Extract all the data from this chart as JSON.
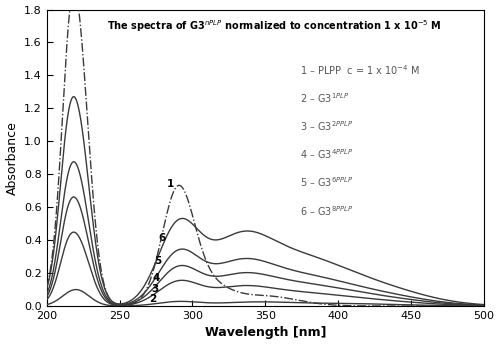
{
  "xlabel": "Wavelength [nm]",
  "ylabel": "Absorbance",
  "xlim": [
    200,
    500
  ],
  "ylim": [
    0,
    1.8
  ],
  "yticks": [
    0.0,
    0.2,
    0.4,
    0.6,
    0.8,
    1.0,
    1.2,
    1.4,
    1.6,
    1.8
  ],
  "xticks": [
    200,
    250,
    300,
    350,
    400,
    450,
    500
  ],
  "background_color": "#ffffff",
  "line_color": "#3a3a3a",
  "curve1_peak220": 1.75,
  "curve1_peak290": 0.68,
  "curve2_peak220": 0.1,
  "curve3_peak220": 0.42,
  "curve4_peak220": 0.62,
  "curve5_peak220": 0.82,
  "curve6_peak220": 1.19,
  "solid_peak290_scale": 0.08,
  "solid_hump_scale": 0.12
}
